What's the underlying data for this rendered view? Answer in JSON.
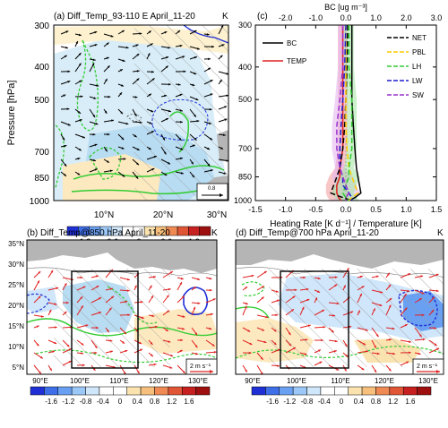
{
  "panels": {
    "a": {
      "title": "(a)  Diff_Temp_93-110 E  April_11-20",
      "unit": "K",
      "ylabel": "Pressure [hPa]",
      "yticks": [
        "300",
        "400",
        "500",
        "700",
        "850",
        "1000"
      ],
      "xticks": [
        "10°N",
        "20°N",
        "30°N"
      ],
      "ref_vector": "0.8"
    },
    "b": {
      "title": "(b)  Diff_Temp@850 hPa  April_11-20",
      "unit": "K",
      "ref_vector": "2 m s⁻¹"
    },
    "c": {
      "title": "(c)"
    },
    "d": {
      "title": "(d)  Diff_Temp@700 hPa  April_11-20",
      "unit": "K",
      "ref_vector": "2 m s⁻¹"
    }
  },
  "map_axes": {
    "yticks": [
      "35°N",
      "30°N",
      "25°N",
      "20°N",
      "15°N",
      "10°N",
      "5°N"
    ],
    "xticks": [
      "90°E",
      "100°E",
      "110°E",
      "120°E",
      "130°E"
    ]
  },
  "colorbars": {
    "a": {
      "labels": [
        "-1.2",
        "-0.6",
        "0",
        "0.6",
        "1.2"
      ],
      "colors": [
        "#1f2fd6",
        "#3f6fe8",
        "#6aa0f2",
        "#9cc8f7",
        "#cfe6fb",
        "#ffffff",
        "#ffffff",
        "#fbe3b0",
        "#f6bf7c",
        "#ef8a55",
        "#e05535",
        "#c62020",
        "#9e0f0f"
      ]
    },
    "bd": {
      "labels": [
        "-1.6",
        "-1.2",
        "-0.8",
        "-0.4",
        "0",
        "0.4",
        "0.8",
        "1.2",
        "1.6"
      ],
      "colors": [
        "#1f2fd6",
        "#3f6fe8",
        "#6aa0f2",
        "#9cc8f7",
        "#cfe6fb",
        "#ffffff",
        "#ffffff",
        "#fbe3b0",
        "#f6bf7c",
        "#ef8a55",
        "#e05535",
        "#c62020",
        "#9e0f0f"
      ]
    }
  },
  "chart_data": [
    {
      "type": "line",
      "title": "",
      "xlabel": "Heating Rate [K d⁻¹] / Temperature [K]",
      "x2label": "BC [ug m⁻³]",
      "ylabel": "",
      "xlim": [
        -1.5,
        1.5
      ],
      "x2lim": [
        -3.0,
        3.0
      ],
      "ylim": [
        300,
        1000
      ],
      "xticks": [
        "-1.5",
        "-1.0",
        "-0.5",
        "0.0",
        "0.5",
        "1.0",
        "1.5"
      ],
      "x2ticks": [
        "-2.0",
        "-1.0",
        "0.0",
        "1.0",
        "2.0",
        "3.0"
      ],
      "yticks": [
        300,
        400,
        500,
        700,
        850,
        1000
      ],
      "pressure": [
        300,
        400,
        500,
        600,
        700,
        800,
        850,
        900,
        950,
        980,
        1000
      ],
      "series": [
        {
          "name": "BC",
          "color": "#000000",
          "dash": "",
          "axis": "top",
          "values": [
            0.2,
            0.2,
            0.2,
            0.25,
            0.3,
            0.35,
            0.4,
            0.45,
            0.5,
            0.3,
            0.1
          ]
        },
        {
          "name": "TEMP",
          "color": "#e02020",
          "dash": "",
          "axis": "bottom",
          "values": [
            -0.05,
            -0.05,
            -0.05,
            -0.05,
            -0.05,
            -0.1,
            -0.1,
            -0.15,
            -0.15,
            -0.12,
            -0.08
          ]
        },
        {
          "name": "NET",
          "color": "#000000",
          "dash": "6,3",
          "axis": "bottom",
          "values": [
            0.03,
            0.02,
            0.0,
            -0.02,
            -0.05,
            -0.1,
            -0.15,
            -0.2,
            -0.25,
            -0.05,
            0.1
          ]
        },
        {
          "name": "PBL",
          "color": "#ffcc00",
          "dash": "6,3",
          "axis": "bottom",
          "values": [
            0.0,
            0.0,
            0.0,
            0.0,
            0.02,
            0.05,
            0.1,
            0.15,
            0.2,
            0.1,
            0.05
          ]
        },
        {
          "name": "LH",
          "color": "#33cc33",
          "dash": "6,3",
          "axis": "bottom",
          "values": [
            0.05,
            0.05,
            0.1,
            0.1,
            0.1,
            0.05,
            0.05,
            0.0,
            -0.05,
            0.0,
            0.05
          ]
        },
        {
          "name": "LW",
          "color": "#1f1fcc",
          "dash": "6,3",
          "axis": "bottom",
          "values": [
            0.0,
            -0.02,
            -0.05,
            -0.08,
            -0.1,
            -0.1,
            -0.05,
            -0.05,
            0.05,
            0.1,
            0.1
          ]
        },
        {
          "name": "SW",
          "color": "#9933cc",
          "dash": "6,3",
          "axis": "bottom",
          "values": [
            -0.05,
            -0.05,
            -0.1,
            -0.15,
            -0.15,
            -0.1,
            -0.05,
            0.0,
            0.05,
            0.0,
            0.0
          ]
        }
      ]
    }
  ]
}
